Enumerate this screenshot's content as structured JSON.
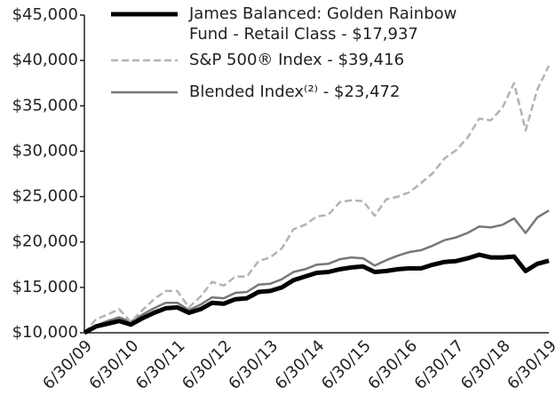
{
  "chart_data": {
    "type": "line",
    "categories": [
      "6/30/09",
      null,
      null,
      null,
      "6/30/10",
      null,
      null,
      null,
      "6/30/11",
      null,
      null,
      null,
      "6/30/12",
      null,
      null,
      null,
      "6/30/13",
      null,
      null,
      null,
      "6/30/14",
      null,
      null,
      null,
      "6/30/15",
      null,
      null,
      null,
      "6/30/16",
      null,
      null,
      null,
      "6/30/17",
      null,
      null,
      null,
      "6/30/18",
      null,
      null,
      null,
      "6/30/19"
    ],
    "series": [
      {
        "name": "James Balanced: Golden Rainbow Fund - Retail Class - $17,937",
        "color": "#000000",
        "dash": false,
        "values": [
          10000,
          10700,
          11000,
          11300,
          10900,
          11600,
          12200,
          12700,
          12800,
          12200,
          12600,
          13300,
          13200,
          13700,
          13800,
          14500,
          14600,
          15000,
          15800,
          16200,
          16600,
          16700,
          17000,
          17200,
          17300,
          16700,
          16800,
          17000,
          17100,
          17100,
          17500,
          17800,
          17900,
          18200,
          18600,
          18300,
          18300,
          18400,
          16800,
          17600,
          17937
        ]
      },
      {
        "name": "S&P 500® Index - $39,416",
        "color": "#b3b3b3",
        "dash": true,
        "values": [
          10000,
          11500,
          12000,
          12600,
          11200,
          12500,
          13700,
          14600,
          14600,
          12800,
          14000,
          15600,
          15200,
          16200,
          16200,
          17900,
          18300,
          19300,
          21400,
          21900,
          22800,
          23000,
          24400,
          24600,
          24500,
          22900,
          24700,
          25000,
          25500,
          26500,
          27600,
          29200,
          30100,
          31500,
          33600,
          33400,
          34800,
          37500,
          32300,
          36800,
          39416
        ]
      },
      {
        "name": "Blended Index⁽²⁾ - $23,472",
        "color": "#777777",
        "dash": false,
        "values": [
          10000,
          10800,
          11300,
          11700,
          11200,
          12000,
          12700,
          13300,
          13300,
          12500,
          13100,
          13900,
          13800,
          14400,
          14500,
          15300,
          15400,
          15900,
          16700,
          17000,
          17500,
          17600,
          18100,
          18300,
          18200,
          17400,
          18000,
          18500,
          18900,
          19100,
          19600,
          20200,
          20500,
          21000,
          21700,
          21600,
          21900,
          22600,
          21000,
          22700,
          23472
        ]
      }
    ],
    "ylim": [
      10000,
      45000
    ],
    "yticks": [
      {
        "value": 10000,
        "label": "$10,000"
      },
      {
        "value": 15000,
        "label": "$15,000"
      },
      {
        "value": 20000,
        "label": "$20,000"
      },
      {
        "value": 25000,
        "label": "$25,000"
      },
      {
        "value": 30000,
        "label": "$30,000"
      },
      {
        "value": 35000,
        "label": "$35,000"
      },
      {
        "value": 40000,
        "label": "$40,000"
      },
      {
        "value": 45000,
        "label": "$45,000"
      }
    ],
    "grid": false
  }
}
